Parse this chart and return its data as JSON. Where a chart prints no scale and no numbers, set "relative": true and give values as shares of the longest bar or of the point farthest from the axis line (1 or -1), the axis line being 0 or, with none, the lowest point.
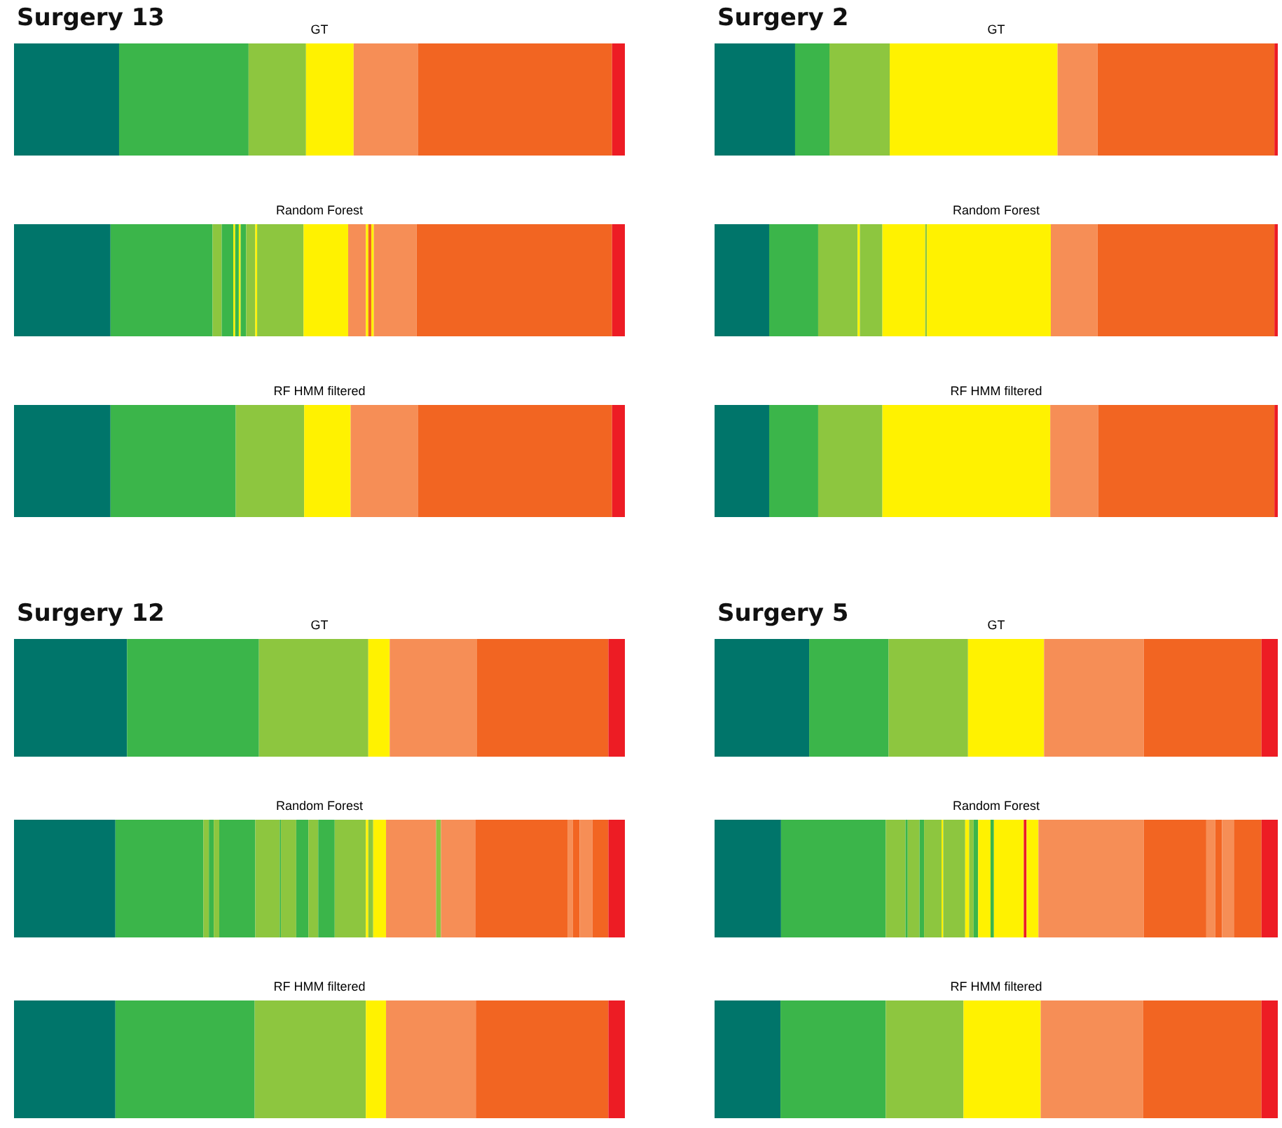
{
  "chart_data": [
    {
      "type": "bar",
      "orientation": "horizontal",
      "stacked": true,
      "relative": true,
      "categories": [
        null
      ],
      "title": "GT",
      "annotations": [
        "Surgery 13"
      ],
      "series": [
        {
          "color": "#00756a",
          "values": [
            0.172
          ]
        },
        {
          "color": "#3bb54a",
          "values": [
            0.212
          ]
        },
        {
          "color": "#8dc63f",
          "values": [
            0.094
          ]
        },
        {
          "color": "#fff200",
          "values": [
            0.078
          ]
        },
        {
          "color": "#f68e56",
          "values": [
            0.105
          ]
        },
        {
          "color": "#f26522",
          "values": [
            0.318
          ]
        },
        {
          "color": "#ed1c24",
          "values": [
            0.021
          ]
        }
      ]
    },
    {
      "type": "bar",
      "orientation": "horizontal",
      "stacked": true,
      "relative": true,
      "categories": [
        null
      ],
      "title": "Random Forest",
      "series": [
        {
          "color": "#00756a",
          "values": [
            0.158
          ]
        },
        {
          "color": "#3bb54a",
          "values": [
            0.167
          ]
        },
        {
          "color": "#8dc63f",
          "values": [
            0.015
          ]
        },
        {
          "color": "#3bb54a",
          "values": [
            0.019
          ]
        },
        {
          "color": "#fff200",
          "values": [
            0.003
          ]
        },
        {
          "color": "#3bb54a",
          "values": [
            0.006
          ]
        },
        {
          "color": "#fff200",
          "values": [
            0.003
          ]
        },
        {
          "color": "#3bb54a",
          "values": [
            0.009
          ]
        },
        {
          "color": "#8dc63f",
          "values": [
            0.015
          ]
        },
        {
          "color": "#fff200",
          "values": [
            0.003
          ]
        },
        {
          "color": "#8dc63f",
          "values": [
            0.076
          ]
        },
        {
          "color": "#fff200",
          "values": [
            0.073
          ]
        },
        {
          "color": "#f68e56",
          "values": [
            0.029
          ]
        },
        {
          "color": "#fff200",
          "values": [
            0.004
          ]
        },
        {
          "color": "#f26522",
          "values": [
            0.005
          ]
        },
        {
          "color": "#fff200",
          "values": [
            0.004
          ]
        },
        {
          "color": "#f68e56",
          "values": [
            0.07
          ]
        },
        {
          "color": "#f26522",
          "values": [
            0.32
          ]
        },
        {
          "color": "#ed1c24",
          "values": [
            0.021
          ]
        }
      ]
    },
    {
      "type": "bar",
      "orientation": "horizontal",
      "stacked": true,
      "relative": true,
      "categories": [
        null
      ],
      "title": "RF HMM filtered",
      "series": [
        {
          "color": "#00756a",
          "values": [
            0.158
          ]
        },
        {
          "color": "#3bb54a",
          "values": [
            0.205
          ]
        },
        {
          "color": "#8dc63f",
          "values": [
            0.112
          ]
        },
        {
          "color": "#fff200",
          "values": [
            0.076
          ]
        },
        {
          "color": "#f68e56",
          "values": [
            0.11
          ]
        },
        {
          "color": "#f26522",
          "values": [
            0.318
          ]
        },
        {
          "color": "#ed1c24",
          "values": [
            0.021
          ]
        }
      ]
    },
    {
      "type": "bar",
      "orientation": "horizontal",
      "stacked": true,
      "relative": true,
      "categories": [
        null
      ],
      "title": "GT",
      "annotations": [
        "Surgery 2"
      ],
      "series": [
        {
          "color": "#00756a",
          "values": [
            0.143
          ]
        },
        {
          "color": "#3bb54a",
          "values": [
            0.061
          ]
        },
        {
          "color": "#8dc63f",
          "values": [
            0.107
          ]
        },
        {
          "color": "#fff200",
          "values": [
            0.298
          ]
        },
        {
          "color": "#f68e56",
          "values": [
            0.071
          ]
        },
        {
          "color": "#f26522",
          "values": [
            0.314
          ]
        },
        {
          "color": "#ed1c24",
          "values": [
            0.006
          ]
        }
      ]
    },
    {
      "type": "bar",
      "orientation": "horizontal",
      "stacked": true,
      "relative": true,
      "categories": [
        null
      ],
      "title": "Random Forest",
      "series": [
        {
          "color": "#00756a",
          "values": [
            0.097
          ]
        },
        {
          "color": "#3bb54a",
          "values": [
            0.087
          ]
        },
        {
          "color": "#8dc63f",
          "values": [
            0.07
          ]
        },
        {
          "color": "#fff200",
          "values": [
            0.004
          ]
        },
        {
          "color": "#8dc63f",
          "values": [
            0.04
          ]
        },
        {
          "color": "#fff200",
          "values": [
            0.076
          ]
        },
        {
          "color": "#8dc63f",
          "values": [
            0.003
          ]
        },
        {
          "color": "#fff200",
          "values": [
            0.22
          ]
        },
        {
          "color": "#f68e56",
          "values": [
            0.083
          ]
        },
        {
          "color": "#f26522",
          "values": [
            0.314
          ]
        },
        {
          "color": "#ed1c24",
          "values": [
            0.006
          ]
        }
      ]
    },
    {
      "type": "bar",
      "orientation": "horizontal",
      "stacked": true,
      "relative": true,
      "categories": [
        null
      ],
      "title": "RF HMM filtered",
      "series": [
        {
          "color": "#00756a",
          "values": [
            0.097
          ]
        },
        {
          "color": "#3bb54a",
          "values": [
            0.087
          ]
        },
        {
          "color": "#8dc63f",
          "values": [
            0.114
          ]
        },
        {
          "color": "#fff200",
          "values": [
            0.298
          ]
        },
        {
          "color": "#f68e56",
          "values": [
            0.085
          ]
        },
        {
          "color": "#f26522",
          "values": [
            0.313
          ]
        },
        {
          "color": "#ed1c24",
          "values": [
            0.006
          ]
        }
      ]
    },
    {
      "type": "bar",
      "orientation": "horizontal",
      "stacked": true,
      "relative": true,
      "categories": [
        null
      ],
      "title": "GT",
      "annotations": [
        "Surgery 12"
      ],
      "series": [
        {
          "color": "#00756a",
          "values": [
            0.185
          ]
        },
        {
          "color": "#3bb54a",
          "values": [
            0.216
          ]
        },
        {
          "color": "#8dc63f",
          "values": [
            0.179
          ]
        },
        {
          "color": "#fff200",
          "values": [
            0.035
          ]
        },
        {
          "color": "#f68e56",
          "values": [
            0.143
          ]
        },
        {
          "color": "#f26522",
          "values": [
            0.215
          ]
        },
        {
          "color": "#ed1c24",
          "values": [
            0.027
          ]
        }
      ]
    },
    {
      "type": "bar",
      "orientation": "horizontal",
      "stacked": true,
      "relative": true,
      "categories": [
        null
      ],
      "title": "Random Forest",
      "series": [
        {
          "color": "#00756a",
          "values": [
            0.166
          ]
        },
        {
          "color": "#3bb54a",
          "values": [
            0.144
          ]
        },
        {
          "color": "#8dc63f",
          "values": [
            0.009
          ]
        },
        {
          "color": "#3bb54a",
          "values": [
            0.008
          ]
        },
        {
          "color": "#8dc63f",
          "values": [
            0.009
          ]
        },
        {
          "color": "#3bb54a",
          "values": [
            0.059
          ]
        },
        {
          "color": "#8dc63f",
          "values": [
            0.04
          ]
        },
        {
          "color": "#3bb54a",
          "values": [
            0.002
          ]
        },
        {
          "color": "#8dc63f",
          "values": [
            0.025
          ]
        },
        {
          "color": "#3bb54a",
          "values": [
            0.02
          ]
        },
        {
          "color": "#8dc63f",
          "values": [
            0.016
          ]
        },
        {
          "color": "#3bb54a",
          "values": [
            0.027
          ]
        },
        {
          "color": "#8dc63f",
          "values": [
            0.051
          ]
        },
        {
          "color": "#fff200",
          "values": [
            0.004
          ]
        },
        {
          "color": "#8dc63f",
          "values": [
            0.008
          ]
        },
        {
          "color": "#fff200",
          "values": [
            0.021
          ]
        },
        {
          "color": "#f68e56",
          "values": [
            0.082
          ]
        },
        {
          "color": "#8dc63f",
          "values": [
            0.008
          ]
        },
        {
          "color": "#f68e56",
          "values": [
            0.056
          ]
        },
        {
          "color": "#f26522",
          "values": [
            0.151
          ]
        },
        {
          "color": "#f68e56",
          "values": [
            0.009
          ]
        },
        {
          "color": "#f26522",
          "values": [
            0.011
          ]
        },
        {
          "color": "#f68e56",
          "values": [
            0.021
          ]
        },
        {
          "color": "#f26522",
          "values": [
            0.026
          ]
        },
        {
          "color": "#ed1c24",
          "values": [
            0.027
          ]
        }
      ]
    },
    {
      "type": "bar",
      "orientation": "horizontal",
      "stacked": true,
      "relative": true,
      "categories": [
        null
      ],
      "title": "RF HMM filtered",
      "series": [
        {
          "color": "#00756a",
          "values": [
            0.166
          ]
        },
        {
          "color": "#3bb54a",
          "values": [
            0.228
          ]
        },
        {
          "color": "#8dc63f",
          "values": [
            0.182
          ]
        },
        {
          "color": "#fff200",
          "values": [
            0.033
          ]
        },
        {
          "color": "#f68e56",
          "values": [
            0.147
          ]
        },
        {
          "color": "#f26522",
          "values": [
            0.217
          ]
        },
        {
          "color": "#ed1c24",
          "values": [
            0.027
          ]
        }
      ]
    },
    {
      "type": "bar",
      "orientation": "horizontal",
      "stacked": true,
      "relative": true,
      "categories": [
        null
      ],
      "title": "GT",
      "annotations": [
        "Surgery 5"
      ],
      "series": [
        {
          "color": "#00756a",
          "values": [
            0.168
          ]
        },
        {
          "color": "#3bb54a",
          "values": [
            0.141
          ]
        },
        {
          "color": "#8dc63f",
          "values": [
            0.141
          ]
        },
        {
          "color": "#fff200",
          "values": [
            0.135
          ]
        },
        {
          "color": "#f68e56",
          "values": [
            0.177
          ]
        },
        {
          "color": "#f26522",
          "values": [
            0.209
          ]
        },
        {
          "color": "#ed1c24",
          "values": [
            0.029
          ]
        }
      ]
    },
    {
      "type": "bar",
      "orientation": "horizontal",
      "stacked": true,
      "relative": true,
      "categories": [
        null
      ],
      "title": "Random Forest",
      "series": [
        {
          "color": "#00756a",
          "values": [
            0.118
          ]
        },
        {
          "color": "#3bb54a",
          "values": [
            0.186
          ]
        },
        {
          "color": "#8dc63f",
          "values": [
            0.035
          ]
        },
        {
          "color": "#3bb54a",
          "values": [
            0.004
          ]
        },
        {
          "color": "#8dc63f",
          "values": [
            0.021
          ]
        },
        {
          "color": "#3bb54a",
          "values": [
            0.008
          ]
        },
        {
          "color": "#8dc63f",
          "values": [
            0.031
          ]
        },
        {
          "color": "#fff200",
          "values": [
            0.003
          ]
        },
        {
          "color": "#8dc63f",
          "values": [
            0.039
          ]
        },
        {
          "color": "#fff200",
          "values": [
            0.007
          ]
        },
        {
          "color": "#8dc63f",
          "values": [
            0.008
          ]
        },
        {
          "color": "#3bb54a",
          "values": [
            0.008
          ]
        },
        {
          "color": "#fff200",
          "values": [
            0.022
          ]
        },
        {
          "color": "#3bb54a",
          "values": [
            0.006
          ]
        },
        {
          "color": "#fff200",
          "values": [
            0.053
          ]
        },
        {
          "color": "#ed1c24",
          "values": [
            0.005
          ]
        },
        {
          "color": "#fff200",
          "values": [
            0.021
          ]
        },
        {
          "color": "#f68e56",
          "values": [
            0.187
          ]
        },
        {
          "color": "#f26522",
          "values": [
            0.111
          ]
        },
        {
          "color": "#f68e56",
          "values": [
            0.016
          ]
        },
        {
          "color": "#f26522",
          "values": [
            0.012
          ]
        },
        {
          "color": "#f68e56",
          "values": [
            0.021
          ]
        },
        {
          "color": "#f26522",
          "values": [
            0.049
          ]
        },
        {
          "color": "#ed1c24",
          "values": [
            0.029
          ]
        }
      ]
    },
    {
      "type": "bar",
      "orientation": "horizontal",
      "stacked": true,
      "relative": true,
      "categories": [
        null
      ],
      "title": "RF HMM filtered",
      "series": [
        {
          "color": "#00756a",
          "values": [
            0.117
          ]
        },
        {
          "color": "#3bb54a",
          "values": [
            0.187
          ]
        },
        {
          "color": "#8dc63f",
          "values": [
            0.138
          ]
        },
        {
          "color": "#fff200",
          "values": [
            0.137
          ]
        },
        {
          "color": "#f68e56",
          "values": [
            0.182
          ]
        },
        {
          "color": "#f26522",
          "values": [
            0.21
          ]
        },
        {
          "color": "#ed1c24",
          "values": [
            0.029
          ]
        }
      ]
    }
  ]
}
